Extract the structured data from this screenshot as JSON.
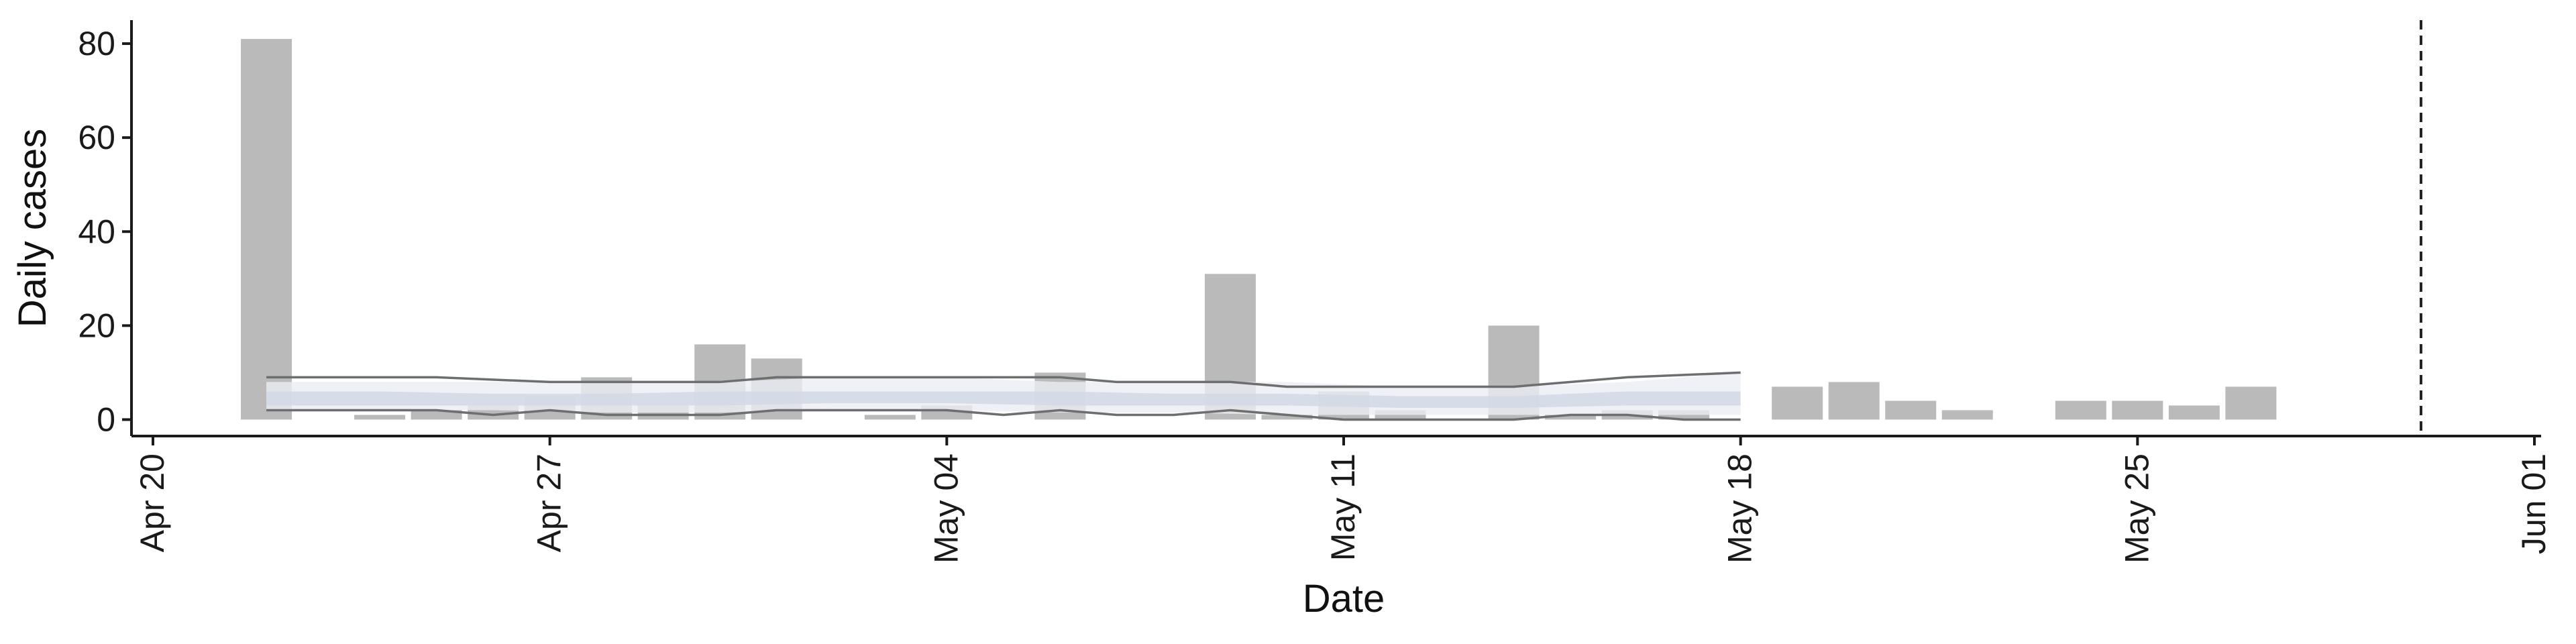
{
  "chart_data": {
    "type": "bar",
    "xlabel": "Date",
    "ylabel": "Daily cases",
    "ylim": [
      -3.5,
      85
    ],
    "y_ticks": [
      0,
      20,
      40,
      60,
      80
    ],
    "x_range": [
      "2020-04-20",
      "2020-06-01"
    ],
    "x_ticks": [
      {
        "date": "2020-04-20",
        "label": "Apr 20"
      },
      {
        "date": "2020-04-27",
        "label": "Apr 27"
      },
      {
        "date": "2020-05-04",
        "label": "May 04"
      },
      {
        "date": "2020-05-11",
        "label": "May 11"
      },
      {
        "date": "2020-05-18",
        "label": "May 18"
      },
      {
        "date": "2020-05-25",
        "label": "May 25"
      },
      {
        "date": "2020-06-01",
        "label": "Jun 01"
      }
    ],
    "bars": [
      {
        "date": "2020-04-22",
        "value": 81
      },
      {
        "date": "2020-04-24",
        "value": 1
      },
      {
        "date": "2020-04-25",
        "value": 2
      },
      {
        "date": "2020-04-26",
        "value": 3
      },
      {
        "date": "2020-04-27",
        "value": 5
      },
      {
        "date": "2020-04-28",
        "value": 9
      },
      {
        "date": "2020-04-29",
        "value": 3
      },
      {
        "date": "2020-04-30",
        "value": 16
      },
      {
        "date": "2020-05-01",
        "value": 13
      },
      {
        "date": "2020-05-03",
        "value": 1
      },
      {
        "date": "2020-05-04",
        "value": 3
      },
      {
        "date": "2020-05-06",
        "value": 10
      },
      {
        "date": "2020-05-09",
        "value": 31
      },
      {
        "date": "2020-05-10",
        "value": 1
      },
      {
        "date": "2020-05-11",
        "value": 6
      },
      {
        "date": "2020-05-12",
        "value": 2
      },
      {
        "date": "2020-05-14",
        "value": 20
      },
      {
        "date": "2020-05-15",
        "value": 1
      },
      {
        "date": "2020-05-16",
        "value": 2
      },
      {
        "date": "2020-05-17",
        "value": 2
      },
      {
        "date": "2020-05-19",
        "value": 7
      },
      {
        "date": "2020-05-20",
        "value": 8
      },
      {
        "date": "2020-05-21",
        "value": 4
      },
      {
        "date": "2020-05-22",
        "value": 2
      },
      {
        "date": "2020-05-24",
        "value": 4
      },
      {
        "date": "2020-05-25",
        "value": 4
      },
      {
        "date": "2020-05-26",
        "value": 3
      },
      {
        "date": "2020-05-27",
        "value": 7
      }
    ],
    "estimate_band": {
      "dates": [
        "2020-04-22",
        "2020-04-24",
        "2020-04-26",
        "2020-04-28",
        "2020-04-30",
        "2020-05-02",
        "2020-05-04",
        "2020-05-06",
        "2020-05-08",
        "2020-05-10",
        "2020-05-12",
        "2020-05-14",
        "2020-05-16",
        "2020-05-18"
      ],
      "outer_upper": [
        8,
        8,
        8,
        8,
        8,
        9,
        9,
        8,
        8,
        8,
        7,
        7,
        8,
        10
      ],
      "outer_lower": [
        2,
        2,
        2,
        1.5,
        1.5,
        2,
        2,
        1.5,
        1.5,
        1,
        1,
        1,
        1,
        1
      ],
      "inner_upper": [
        6,
        6,
        5.5,
        5.5,
        6,
        6,
        6,
        6,
        5.5,
        5.5,
        5,
        5,
        6,
        6
      ],
      "inner_lower": [
        3,
        3,
        3,
        3,
        3,
        3.5,
        3.5,
        3,
        3,
        3,
        2.5,
        2.5,
        3,
        3
      ]
    },
    "estimate_lines": [
      {
        "dates": [
          "2020-04-22",
          "2020-04-25",
          "2020-04-27",
          "2020-04-30",
          "2020-05-01",
          "2020-05-06",
          "2020-05-07",
          "2020-05-09",
          "2020-05-10",
          "2020-05-14",
          "2020-05-16",
          "2020-05-18"
        ],
        "values": [
          9,
          9,
          8,
          8,
          9,
          9,
          8,
          8,
          7,
          7,
          9,
          10
        ]
      },
      {
        "dates": [
          "2020-04-22",
          "2020-04-24",
          "2020-04-25",
          "2020-04-26",
          "2020-04-27",
          "2020-04-28",
          "2020-04-29",
          "2020-04-30",
          "2020-05-01",
          "2020-05-02",
          "2020-05-04",
          "2020-05-05",
          "2020-05-06",
          "2020-05-07",
          "2020-05-08",
          "2020-05-09",
          "2020-05-10",
          "2020-05-11",
          "2020-05-12",
          "2020-05-13",
          "2020-05-14",
          "2020-05-15",
          "2020-05-16",
          "2020-05-17",
          "2020-05-18"
        ],
        "values": [
          2,
          2,
          2,
          1,
          2,
          1,
          1,
          1,
          2,
          2,
          2,
          1,
          2,
          1,
          1,
          2,
          1,
          0,
          0,
          0,
          0,
          1,
          1,
          0,
          0
        ]
      }
    ],
    "vline_date": "2020-05-30",
    "grid": false,
    "colors": {
      "bar": "#bababa",
      "band_outer": "#eceef4",
      "band_inner": "#d2d8e6",
      "line": "#6e6e6e",
      "axis": "#1a1a1a"
    }
  }
}
